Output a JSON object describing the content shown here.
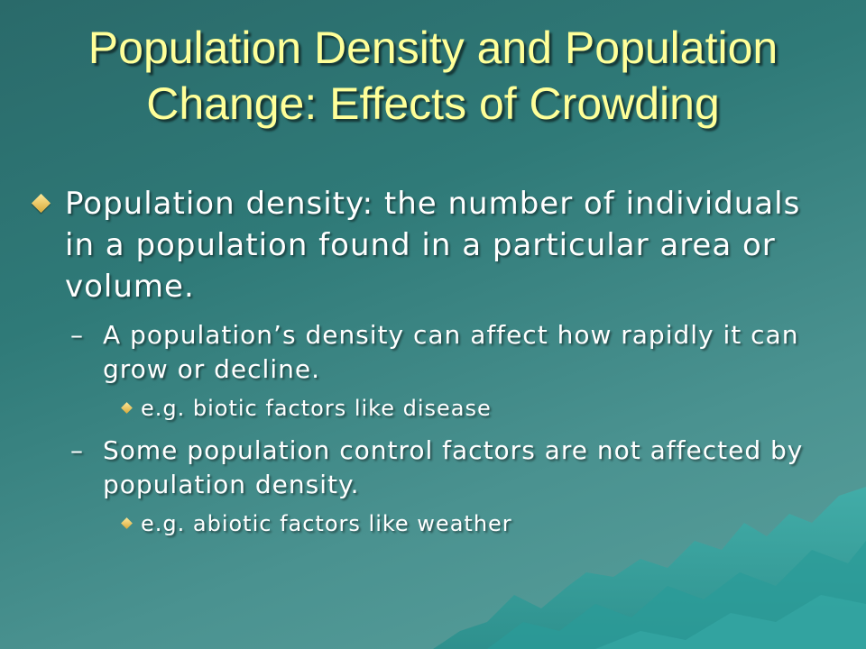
{
  "slide": {
    "title_line1": "Population Density and Population",
    "title_line2": "Change: Effects of Crowding",
    "bullets": [
      {
        "text": "Population density: the number of individuals in a population found in a particular area or volume."
      }
    ],
    "sub_bullets": [
      {
        "dash": "–",
        "text": "A population’s density can affect how rapidly it can grow or decline.",
        "example": "e.g. biotic factors like disease"
      },
      {
        "dash": "–",
        "text": "Some population control factors are not affected by population density.",
        "example": "e.g. abiotic factors like weather"
      }
    ]
  },
  "colors": {
    "background": "#2f7a78",
    "title": "#ffff99",
    "body_text": "#ffffff",
    "bullet": "#e8c25a"
  },
  "icons": {
    "bullet_level1": "diamond-bullet",
    "bullet_level3": "diamond-bullet-small"
  }
}
